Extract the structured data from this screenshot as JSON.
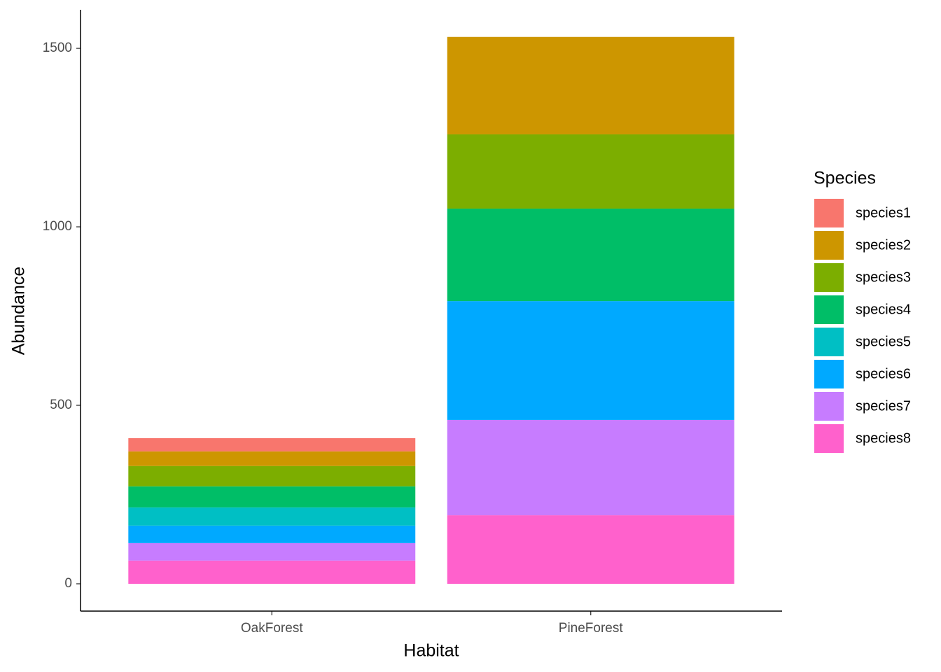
{
  "chart_data": {
    "type": "stacked-bar",
    "x_label": "Habitat",
    "y_label": "Abundance",
    "legend_title": "Species",
    "categories": [
      "OakForest",
      "PineForest"
    ],
    "series": [
      {
        "name": "species1",
        "color": "#F8766D",
        "values": [
          37,
          0
        ]
      },
      {
        "name": "species2",
        "color": "#CD9600",
        "values": [
          41,
          273
        ]
      },
      {
        "name": "species3",
        "color": "#7CAE00",
        "values": [
          57,
          208
        ]
      },
      {
        "name": "species4",
        "color": "#00BE67",
        "values": [
          59,
          259
        ]
      },
      {
        "name": "species5",
        "color": "#00BFC4",
        "values": [
          51,
          0
        ]
      },
      {
        "name": "species6",
        "color": "#00A9FF",
        "values": [
          49,
          333
        ]
      },
      {
        "name": "species7",
        "color": "#C77CFF",
        "values": [
          49,
          267
        ]
      },
      {
        "name": "species8",
        "color": "#FF61CC",
        "values": [
          65,
          192
        ]
      }
    ],
    "ylim": [
      -76.5,
      1608
    ],
    "yticks": [
      0,
      500,
      1000,
      1500
    ],
    "legend": "right"
  }
}
